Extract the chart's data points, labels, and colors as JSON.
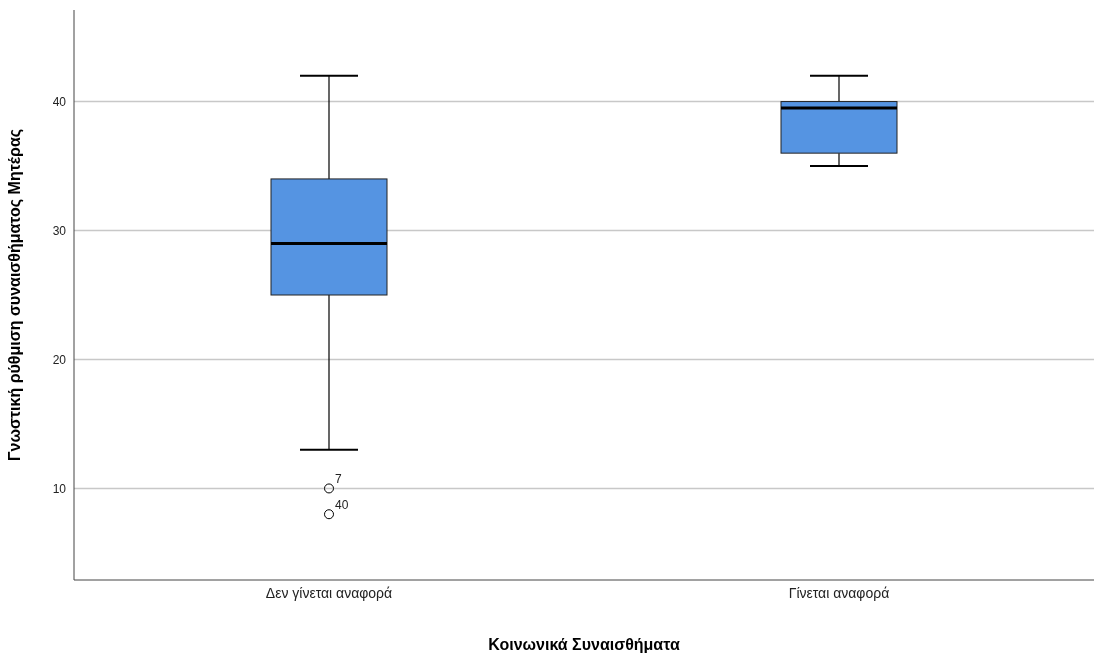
{
  "chart_data": {
    "type": "box",
    "xlabel": "Κοινωνικά Συναισθήματα",
    "ylabel": "Γνωστική ρύθμιση συναισθήματος Μητέρας",
    "categories": [
      "Δεν γίνεται αναφορά",
      "Γίνεται αναφορά"
    ],
    "color": "#5594e2",
    "boxes": [
      {
        "low": 13,
        "q1": 25,
        "median": 29,
        "q3": 34,
        "high": 42,
        "outliers": [
          10,
          8
        ]
      },
      {
        "low": 35,
        "q1": 36,
        "median": 39.5,
        "q3": 40,
        "high": 42
      }
    ],
    "ylim": [
      2.9,
      47.1
    ],
    "yticks": [
      10,
      20,
      30,
      40
    ],
    "grid": "y",
    "marker": "circle",
    "annotations": [
      "7",
      "40"
    ]
  }
}
